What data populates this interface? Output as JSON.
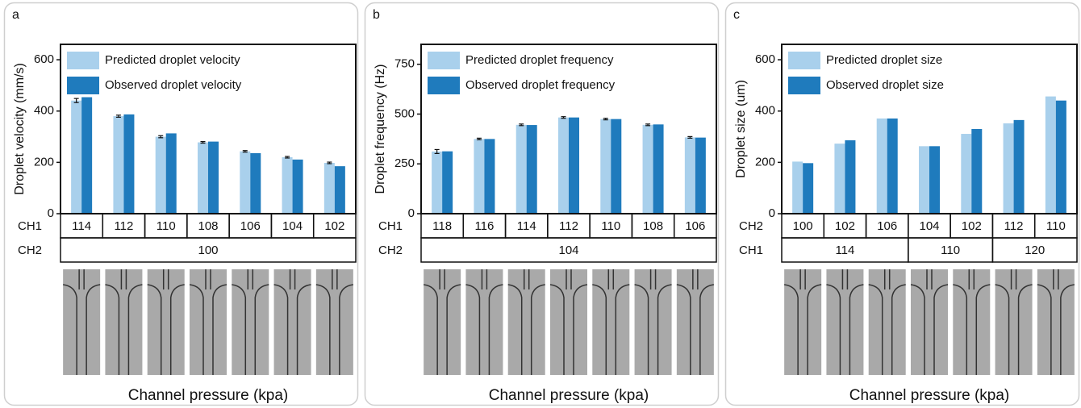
{
  "chart_data": [
    {
      "type": "bar",
      "panel_label": "a",
      "y_label": "Droplet velocity (mm/s)",
      "x_label": "Channel pressure (kpa)",
      "ylim": [
        0,
        660
      ],
      "yticks": [
        0,
        200,
        400,
        600
      ],
      "row_names": [
        "CH1",
        "CH2"
      ],
      "categories": [
        "114",
        "112",
        "110",
        "108",
        "106",
        "104",
        "102"
      ],
      "groups": [
        "100",
        null,
        null,
        null,
        null,
        null,
        null
      ],
      "series": [
        {
          "name": "Predicted droplet velocity",
          "color": "#a9d0ec",
          "values": [
            441,
            380,
            300,
            278,
            243,
            220,
            198
          ],
          "errors": [
            8,
            4,
            4,
            3,
            3,
            3,
            3
          ]
        },
        {
          "name": "Observed droplet velocity",
          "color": "#1f7bbd",
          "values": [
            454,
            387,
            313,
            281,
            236,
            211,
            185
          ]
        }
      ]
    },
    {
      "type": "bar",
      "panel_label": "b",
      "y_label": "Droplet frequency (Hz)",
      "x_label": "Channel pressure (kpa)",
      "ylim": [
        0,
        850
      ],
      "yticks": [
        0,
        250,
        500,
        750
      ],
      "row_names": [
        "CH1",
        "CH2"
      ],
      "categories": [
        "118",
        "116",
        "114",
        "112",
        "110",
        "108",
        "106"
      ],
      "groups": [
        "104",
        null,
        null,
        null,
        null,
        null,
        null
      ],
      "series": [
        {
          "name": "Predicted droplet frequency",
          "color": "#a9d0ec",
          "values": [
            312,
            375,
            446,
            483,
            475,
            446,
            383
          ],
          "errors": [
            10,
            4,
            4,
            4,
            4,
            4,
            4
          ]
        },
        {
          "name": "Observed droplet frequency",
          "color": "#1f7bbd",
          "values": [
            313,
            375,
            445,
            483,
            475,
            448,
            382
          ]
        }
      ]
    },
    {
      "type": "bar",
      "panel_label": "c",
      "y_label": "Droplet size (um)",
      "x_label": "Channel pressure (kpa)",
      "ylim": [
        0,
        660
      ],
      "yticks": [
        0,
        200,
        400,
        600
      ],
      "row_names": [
        "CH2",
        "CH1"
      ],
      "categories": [
        "100",
        "102",
        "106",
        "104",
        "102",
        "112",
        "110"
      ],
      "groups": [
        "114",
        null,
        null,
        "110",
        null,
        "120",
        null
      ],
      "series": [
        {
          "name": "Predicted droplet size",
          "color": "#a9d0ec",
          "values": [
            203,
            273,
            371,
            263,
            311,
            352,
            457
          ]
        },
        {
          "name": "Observed droplet size",
          "color": "#1f7bbd",
          "values": [
            197,
            286,
            371,
            263,
            330,
            365,
            441
          ]
        }
      ]
    }
  ]
}
